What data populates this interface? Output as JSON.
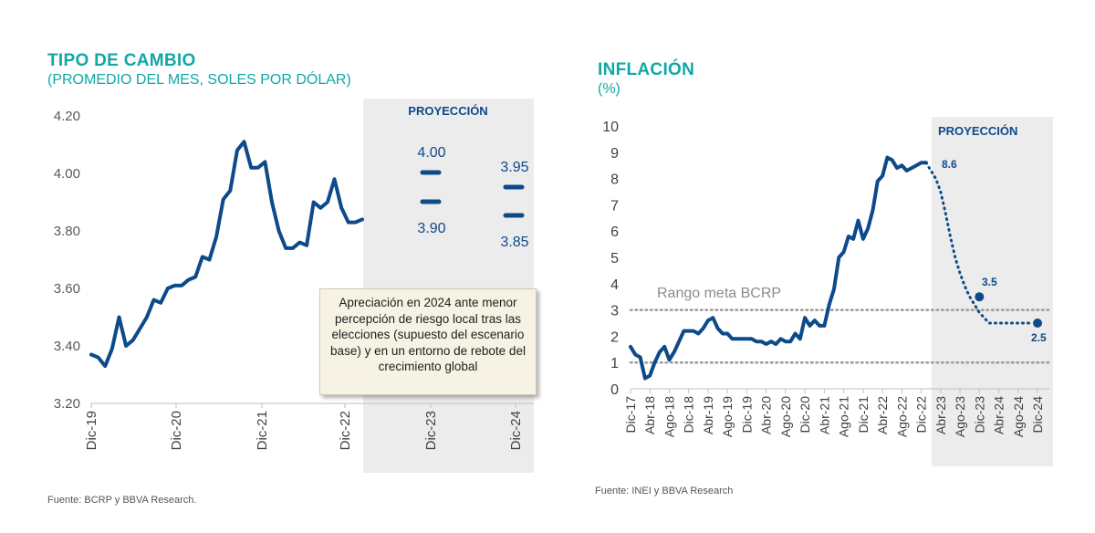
{
  "left": {
    "title": "TIPO DE CAMBIO",
    "subtitle": "(PROMEDIO DEL MES, SOLES POR DÓLAR)",
    "projection_label": "PROYECCIÓN",
    "annotation": "Apreciación en 2024 ante menor percepción de riesgo local tras las elecciones (supuesto del escenario base) y en un entorno de rebote del crecimiento global",
    "source": "Fuente: BCRP y BBVA Research."
  },
  "right": {
    "title": "INFLACIÓN",
    "subtitle": "(%)",
    "projection_label": "PROYECCIÓN",
    "band_label": "Rango meta BCRP",
    "source": "Fuente: INEI y BBVA Research"
  },
  "colors": {
    "accent": "#10a8a6",
    "series": "#0d4a8a",
    "projection_bg": "#ececec",
    "band": "#9a9a9a"
  },
  "chart_data": [
    {
      "type": "line",
      "title": "TIPO DE CAMBIO",
      "subtitle": "(PROMEDIO DEL MES, SOLES POR DÓLAR)",
      "x_labels": [
        "Dic-19",
        "Dic-20",
        "Dic-21",
        "Dic-22",
        "Dic-23",
        "Dic-24"
      ],
      "ylim": [
        3.2,
        4.2
      ],
      "y_ticks": [
        "3.20",
        "3.40",
        "3.60",
        "3.80",
        "4.00",
        "4.20"
      ],
      "series": [
        {
          "values": [
            3.37,
            3.36,
            3.33,
            3.39,
            3.5,
            3.4,
            3.42,
            3.46,
            3.5,
            3.56,
            3.55,
            3.6,
            3.61,
            3.61,
            3.63,
            3.64,
            3.71,
            3.7,
            3.78,
            3.91,
            3.94,
            4.08,
            4.11,
            4.02,
            4.02,
            4.04,
            3.9,
            3.8,
            3.74,
            3.74,
            3.76,
            3.75,
            3.9,
            3.88,
            3.9,
            3.98,
            3.88,
            3.83,
            3.83,
            3.84
          ]
        }
      ],
      "projection": {
        "label": "PROYECCIÓN",
        "ranges": [
          {
            "period": "Dic-23",
            "high": "4.00",
            "low": "3.90"
          },
          {
            "period": "Dic-24",
            "high": "3.95",
            "low": "3.85"
          }
        ]
      },
      "grid": false
    },
    {
      "type": "line",
      "title": "INFLACIÓN",
      "subtitle": "(%)",
      "x_labels": [
        "Dic-17",
        "Abr-18",
        "Ago-18",
        "Dic-18",
        "Abr-19",
        "Ago-19",
        "Dic-19",
        "Abr-20",
        "Ago-20",
        "Dic-20",
        "Abr-21",
        "Ago-21",
        "Dic-21",
        "Abr-22",
        "Ago-22",
        "Dic-22",
        "Abr-23",
        "Ago-23",
        "Dic-23",
        "Abr-24",
        "Ago-24",
        "Dic-24"
      ],
      "ylim": [
        0,
        10
      ],
      "y_ticks": [
        "0",
        "1",
        "2",
        "3",
        "4",
        "5",
        "6",
        "7",
        "8",
        "9",
        "10"
      ],
      "series": [
        {
          "values": [
            1.6,
            1.3,
            1.2,
            0.4,
            0.5,
            1.0,
            1.4,
            1.6,
            1.1,
            1.4,
            1.8,
            2.2,
            2.2,
            2.2,
            2.1,
            2.3,
            2.6,
            2.7,
            2.3,
            2.1,
            2.1,
            1.9,
            1.9,
            1.9,
            1.9,
            1.9,
            1.8,
            1.8,
            1.7,
            1.8,
            1.7,
            1.9,
            1.8,
            1.8,
            2.1,
            1.9,
            2.7,
            2.4,
            2.6,
            2.4,
            2.4,
            3.2,
            3.8,
            5.0,
            5.2,
            5.8,
            5.7,
            6.4,
            5.7,
            6.1,
            6.8,
            7.9,
            8.1,
            8.8,
            8.7,
            8.4,
            8.5,
            8.3,
            8.4,
            8.5,
            8.6,
            8.6
          ],
          "projection": [
            8.6,
            8.3,
            8.0,
            7.5,
            6.7,
            5.8,
            5.0,
            4.4,
            3.9,
            3.5,
            3.2,
            2.9,
            2.7,
            2.5,
            2.5,
            2.5,
            2.5,
            2.5,
            2.5,
            2.5,
            2.5,
            2.5,
            2.5
          ],
          "projection_labels": [
            {
              "at": "Dic-22",
              "value": "8.6"
            },
            {
              "at": "Dic-23",
              "value": "3.5"
            },
            {
              "at": "Dic-24",
              "value": "2.5"
            }
          ]
        }
      ],
      "target_band": {
        "label": "Rango meta BCRP",
        "low": 1,
        "high": 3
      },
      "projection_label": "PROYECCIÓN",
      "grid": false
    }
  ]
}
